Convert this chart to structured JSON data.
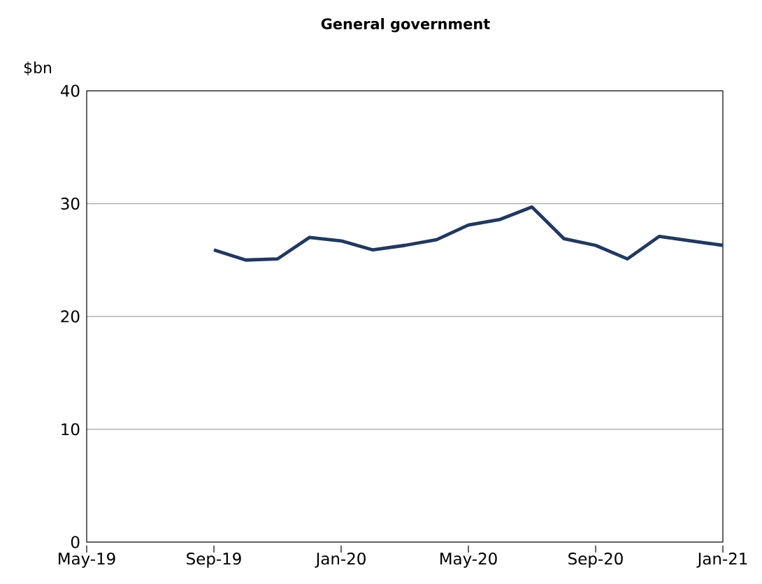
{
  "chart_data": {
    "type": "line",
    "title": "General government",
    "ylabel": "$bn",
    "x": [
      "2019-09",
      "2019-10",
      "2019-11",
      "2019-12",
      "2020-01",
      "2020-02",
      "2020-03",
      "2020-04",
      "2020-05",
      "2020-06",
      "2020-07",
      "2020-08",
      "2020-09",
      "2020-10",
      "2020-11",
      "2020-12",
      "2021-01"
    ],
    "series": [
      {
        "color": "#203864",
        "values": [
          25.9,
          25.0,
          25.1,
          27.0,
          26.7,
          25.9,
          26.3,
          26.8,
          28.1,
          28.6,
          29.7,
          26.9,
          26.3,
          25.1,
          27.1,
          26.7,
          26.3
        ]
      }
    ],
    "xlim": [
      "2019-05",
      "2021-01"
    ],
    "xticks": [
      {
        "value": "2019-05",
        "label": "May-19"
      },
      {
        "value": "2019-09",
        "label": "Sep-19"
      },
      {
        "value": "2020-01",
        "label": "Jan-20"
      },
      {
        "value": "2020-05",
        "label": "May-20"
      },
      {
        "value": "2020-09",
        "label": "Sep-20"
      },
      {
        "value": "2021-01",
        "label": "Jan-21"
      }
    ],
    "ylim": [
      0,
      40
    ],
    "yticks": [
      0,
      10,
      20,
      30,
      40
    ],
    "grid": "y"
  }
}
